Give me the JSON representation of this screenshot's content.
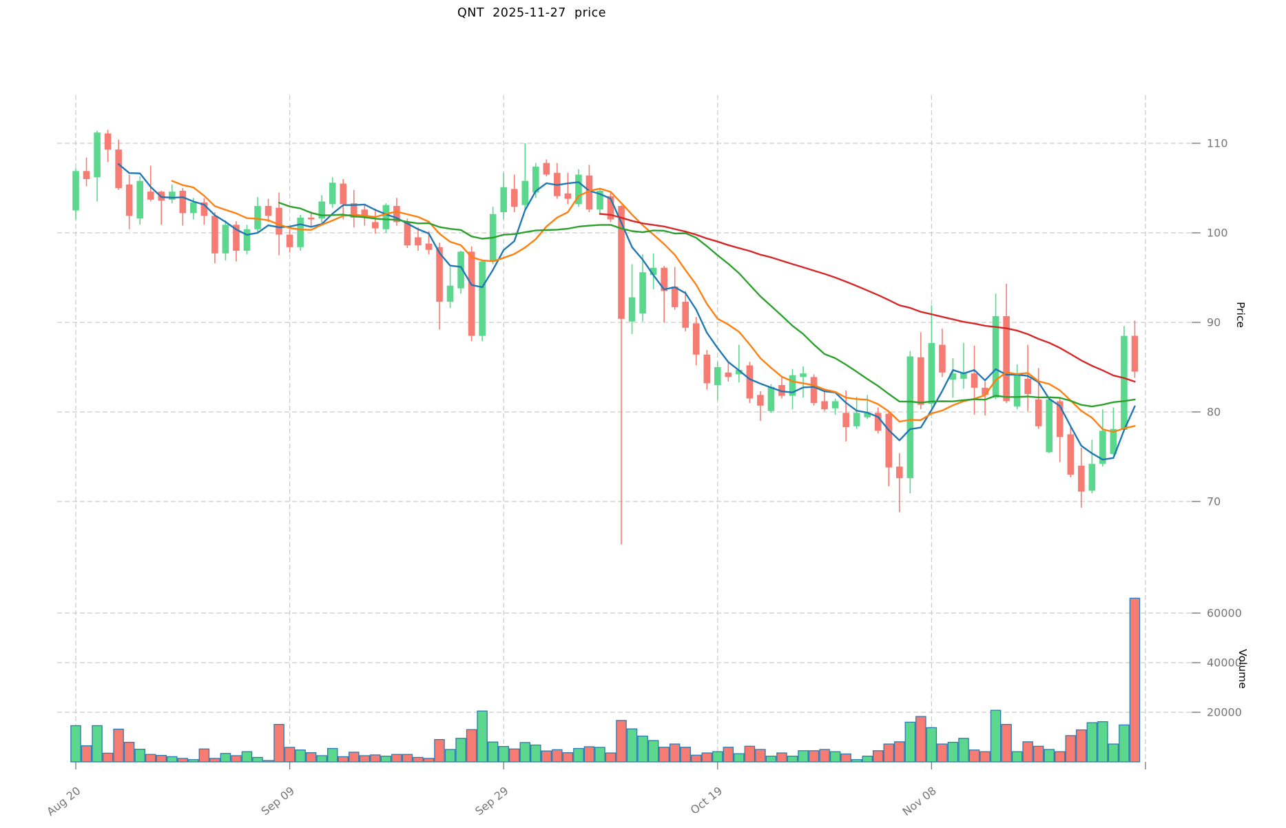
{
  "title": "QNT  2025-11-27  price",
  "price_axis": {
    "label": "Price",
    "ticks": [
      110,
      100,
      90,
      80,
      70
    ]
  },
  "volume_axis": {
    "label": "Volume",
    "ticks": [
      20000,
      40000,
      60000
    ]
  },
  "x_axis": {
    "tick_labels": [
      "Aug 20",
      "Sep 09",
      "Sep 29",
      "Oct 19",
      "Nov 08"
    ],
    "tick_indices": [
      0,
      20,
      40,
      60,
      80
    ],
    "unlabeled_gridline_index": 100
  },
  "colors": {
    "up": "#5cd78e",
    "down": "#f67c73",
    "volume_border": "#2a7ab0",
    "grid": "#c9c9c9",
    "tick_text": "#757575",
    "ma5": "#1f77b4",
    "ma10": "#ff7f0e",
    "ma20": "#2ca02c",
    "ma50": "#d62728"
  },
  "moving_averages": [
    {
      "name": "MA5",
      "window": 5,
      "color_key": "ma5"
    },
    {
      "name": "MA10",
      "window": 10,
      "color_key": "ma10"
    },
    {
      "name": "MA20",
      "window": 20,
      "color_key": "ma20"
    },
    {
      "name": "MA50",
      "window": 50,
      "color_key": "ma50"
    }
  ],
  "chart_data": {
    "type": "candlestick_with_volume",
    "symbol": "QNT",
    "date": "2025-11-27",
    "start_date": "2025-08-20",
    "frequency": "daily",
    "price_ylim": [
      63,
      113
    ],
    "volume_ylim": [
      0,
      68000
    ],
    "grid": true,
    "ohlcv_columns": [
      "open",
      "high",
      "low",
      "close",
      "volume"
    ],
    "ohlcv": [
      [
        102.5,
        107.2,
        101.5,
        106.9,
        14600
      ],
      [
        106.9,
        108.4,
        105.2,
        106.0,
        6500
      ],
      [
        106.2,
        111.4,
        103.5,
        111.2,
        14600
      ],
      [
        111.1,
        111.5,
        107.9,
        109.3,
        3500
      ],
      [
        109.3,
        110.4,
        104.8,
        105.0,
        13200
      ],
      [
        105.4,
        106.5,
        100.4,
        101.9,
        7900
      ],
      [
        101.6,
        106.3,
        100.9,
        105.8,
        5100
      ],
      [
        104.6,
        107.5,
        103.5,
        103.7,
        3000
      ],
      [
        104.6,
        104.7,
        100.9,
        103.6,
        2600
      ],
      [
        103.7,
        105.4,
        103.3,
        104.6,
        2100
      ],
      [
        104.7,
        105.0,
        100.8,
        102.2,
        1400
      ],
      [
        102.2,
        103.9,
        101.5,
        103.4,
        900
      ],
      [
        103.4,
        103.9,
        100.9,
        101.9,
        5200
      ],
      [
        101.9,
        102.3,
        96.6,
        97.7,
        1400
      ],
      [
        97.7,
        101.4,
        96.9,
        100.9,
        3400
      ],
      [
        100.9,
        101.3,
        96.8,
        98.0,
        2500
      ],
      [
        98.0,
        100.9,
        97.6,
        100.4,
        4100
      ],
      [
        100.4,
        104.0,
        100.0,
        103.0,
        1800
      ],
      [
        103.0,
        103.8,
        101.2,
        101.9,
        540
      ],
      [
        102.8,
        104.5,
        97.5,
        99.8,
        15100
      ],
      [
        99.8,
        100.4,
        97.8,
        98.4,
        5850
      ],
      [
        98.4,
        102.0,
        98.0,
        101.7,
        4800
      ],
      [
        101.7,
        102.4,
        100.6,
        101.5,
        3700
      ],
      [
        101.6,
        104.2,
        101.0,
        103.5,
        2500
      ],
      [
        103.2,
        106.2,
        102.8,
        105.6,
        5400
      ],
      [
        105.5,
        106.0,
        101.5,
        103.2,
        2100
      ],
      [
        103.3,
        104.8,
        100.6,
        101.7,
        3900
      ],
      [
        102.6,
        103.2,
        100.8,
        101.8,
        2500
      ],
      [
        101.2,
        102.7,
        99.9,
        100.5,
        2800
      ],
      [
        100.4,
        103.3,
        100.0,
        103.1,
        2300
      ],
      [
        103.0,
        103.9,
        100.8,
        101.2,
        3000
      ],
      [
        101.2,
        101.6,
        98.3,
        98.6,
        3000
      ],
      [
        99.5,
        100.6,
        98.0,
        98.6,
        1800
      ],
      [
        98.8,
        100.2,
        97.6,
        98.1,
        1400
      ],
      [
        98.4,
        98.9,
        89.2,
        92.3,
        9000
      ],
      [
        92.3,
        96.2,
        91.6,
        94.1,
        5000
      ],
      [
        93.8,
        98.0,
        93.2,
        97.9,
        9500
      ],
      [
        97.9,
        98.5,
        87.9,
        88.5,
        13000
      ],
      [
        88.5,
        97.0,
        87.9,
        96.8,
        20500
      ],
      [
        96.8,
        102.9,
        96.5,
        102.1,
        8000
      ],
      [
        102.3,
        106.7,
        101.5,
        105.1,
        6200
      ],
      [
        104.9,
        106.5,
        102.3,
        102.9,
        5200
      ],
      [
        103.1,
        110.0,
        102.5,
        105.8,
        7800
      ],
      [
        104.5,
        107.8,
        103.9,
        107.4,
        6800
      ],
      [
        107.8,
        108.2,
        106.3,
        106.5,
        4400
      ],
      [
        106.7,
        107.8,
        103.8,
        104.1,
        4900
      ],
      [
        104.4,
        106.7,
        103.2,
        103.8,
        3700
      ],
      [
        103.2,
        107.1,
        102.9,
        106.5,
        5400
      ],
      [
        106.4,
        107.6,
        102.3,
        102.6,
        6100
      ],
      [
        102.6,
        104.9,
        102.0,
        104.7,
        5850
      ],
      [
        104.1,
        104.5,
        101.2,
        101.5,
        3600
      ],
      [
        103.0,
        103.1,
        65.2,
        90.4,
        16700
      ],
      [
        90.1,
        96.5,
        88.7,
        92.8,
        13300
      ],
      [
        91.0,
        97.6,
        90.1,
        95.6,
        10400
      ],
      [
        95.3,
        97.7,
        93.7,
        96.1,
        8600
      ],
      [
        96.1,
        96.3,
        90.0,
        93.5,
        5900
      ],
      [
        94.0,
        96.2,
        91.4,
        91.7,
        7200
      ],
      [
        92.3,
        93.5,
        89.0,
        89.4,
        5900
      ],
      [
        89.9,
        90.6,
        85.2,
        86.4,
        2700
      ],
      [
        86.4,
        86.9,
        82.5,
        83.2,
        3600
      ],
      [
        83.0,
        85.6,
        81.3,
        85.0,
        4100
      ],
      [
        84.4,
        85.5,
        83.4,
        83.9,
        5900
      ],
      [
        84.2,
        87.5,
        83.3,
        84.7,
        3300
      ],
      [
        85.2,
        85.6,
        81.0,
        81.5,
        6300
      ],
      [
        81.9,
        82.3,
        79.0,
        80.7,
        5000
      ],
      [
        80.1,
        83.1,
        79.9,
        82.8,
        2300
      ],
      [
        83.0,
        84.0,
        81.5,
        81.8,
        3600
      ],
      [
        81.8,
        84.8,
        80.3,
        84.1,
        2300
      ],
      [
        83.9,
        85.1,
        81.6,
        84.3,
        4500
      ],
      [
        83.9,
        84.2,
        80.7,
        81.0,
        4500
      ],
      [
        81.2,
        82.4,
        80.1,
        80.3,
        5000
      ],
      [
        80.4,
        81.5,
        79.7,
        81.2,
        4100
      ],
      [
        79.9,
        82.4,
        76.7,
        78.3,
        3200
      ],
      [
        78.4,
        81.7,
        78.1,
        79.9,
        900
      ],
      [
        79.4,
        81.9,
        79.2,
        79.9,
        2300
      ],
      [
        79.9,
        80.5,
        77.6,
        77.9,
        4500
      ],
      [
        79.8,
        80.1,
        71.7,
        73.8,
        7200
      ],
      [
        73.9,
        75.4,
        68.8,
        72.6,
        8100
      ],
      [
        72.6,
        86.8,
        70.9,
        86.2,
        16000
      ],
      [
        86.1,
        88.9,
        80.3,
        80.8,
        18300
      ],
      [
        80.9,
        91.9,
        80.5,
        87.7,
        13800
      ],
      [
        87.5,
        89.3,
        83.9,
        84.4,
        7200
      ],
      [
        83.6,
        86.0,
        81.6,
        84.3,
        7900
      ],
      [
        83.7,
        87.7,
        82.6,
        84.3,
        9500
      ],
      [
        84.3,
        87.4,
        79.7,
        82.7,
        4800
      ],
      [
        82.7,
        83.4,
        79.6,
        81.9,
        4100
      ],
      [
        81.6,
        93.2,
        81.4,
        90.7,
        20800
      ],
      [
        90.7,
        94.3,
        81.0,
        81.2,
        15100
      ],
      [
        80.6,
        85.3,
        80.3,
        84.3,
        4100
      ],
      [
        83.7,
        87.5,
        80.1,
        82.0,
        8100
      ],
      [
        81.4,
        84.9,
        78.1,
        78.4,
        6300
      ],
      [
        75.5,
        81.5,
        75.4,
        81.4,
        5000
      ],
      [
        81.2,
        81.5,
        74.4,
        77.2,
        4100
      ],
      [
        77.5,
        78.4,
        72.7,
        73.0,
        10600
      ],
      [
        74.0,
        76.0,
        69.3,
        71.1,
        12900
      ],
      [
        71.2,
        76.9,
        70.9,
        74.2,
        15800
      ],
      [
        74.2,
        80.3,
        73.9,
        77.9,
        16200
      ],
      [
        75.3,
        80.5,
        75.2,
        78.1,
        7200
      ],
      [
        78.0,
        89.6,
        77.8,
        88.5,
        14900
      ],
      [
        88.5,
        90.2,
        83.8,
        84.5,
        66000
      ]
    ]
  }
}
